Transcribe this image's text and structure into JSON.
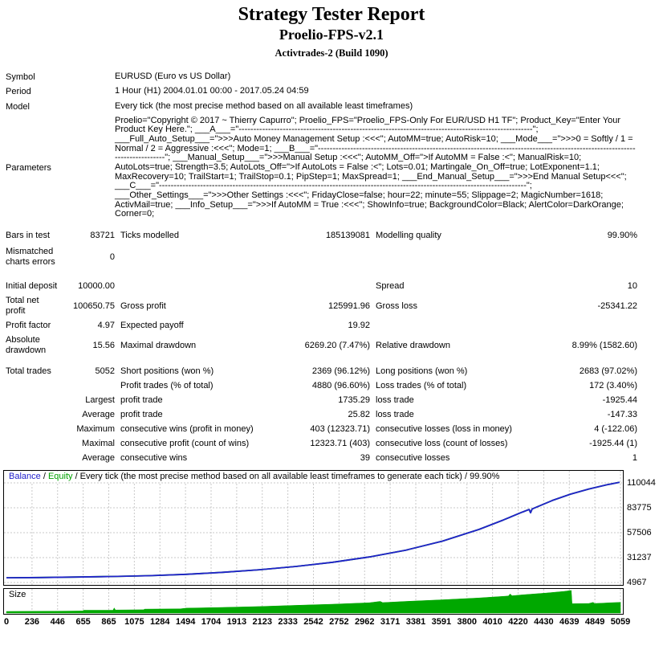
{
  "header": {
    "title": "Strategy Tester Report",
    "subtitle": "Proelio-FPS-v2.1",
    "build": "Activtrades-2 (Build 1090)"
  },
  "table": {
    "info_rows": [
      {
        "label": "Symbol",
        "value": "EURUSD (Euro vs US Dollar)"
      },
      {
        "label": "Period",
        "value": "1 Hour (H1) 2004.01.01 00:00 - 2017.05.24 04:59"
      },
      {
        "label": "Model",
        "value": "Every tick (the most precise method based on all available least timeframes)"
      },
      {
        "label": "Parameters",
        "center": true,
        "value": "Proelio=\"Copyright © 2017 ~ Thierry Capurro\"; Proelio_FPS=\"Proelio_FPS-Only For EUR/USD H1 TF\"; Product_Key=\"Enter Your Product Key Here.\"; ___A___=\"----------------------------------------------------------------------------------------------------\"; ___Full_Auto_Setup___=\">>>Auto Money Management Setup :<<<\"; AutoMM=true; AutoRisk=10; ___Mode___=\">>>0 = Softly / 1 = Normal / 2 = Aggressive :<<<\"; Mode=1; ___B___=\"-----------------------------------------------------------------------------------------------------------------------------\"; ___Manual_Setup___=\">>>Manual Setup :<<<\"; AutoMM_Off=\">If AutoMM = False :<\"; ManualRisk=10; AutoLots=true; Strength=3.5; AutoLots_Off=\">If AutoLots = False :<\"; Lots=0.01; Martingale_On_Off=true; LotExponent=1.1; MaxRecovery=10; TrailStart=1; TrailStop=0.1; PipStep=1; MaxSpread=1; ___End_Manual_Setup___=\">>>End Manual Setup<<<\"; ___C___=\"-----------------------------------------------------------------------------------------------------------------------------\"; ___Other_Settings___=\">>>Other Settings :<<<\"; FridayClose=false; hour=22; minute=55; Slippage=2; MagicNumber=1618; ActivMail=true; ___Info_Setup___=\">>>If AutoMM = True :<<<\"; ShowInfo=true; BackgroundColor=Black; AlertColor=DarkOrange; Corner=0;"
      }
    ],
    "stat_rows": [
      {
        "mt": 12,
        "cells": [
          "Bars in test",
          "83721",
          "Ticks modelled",
          "185139081",
          "Modelling quality",
          "99.90%"
        ]
      },
      {
        "mt": 2,
        "cells": [
          "Mismatched charts errors",
          "0",
          "",
          "",
          "",
          ""
        ]
      },
      {
        "mt": 12,
        "cells": [
          "Initial deposit",
          "10000.00",
          "",
          "",
          "Spread",
          "10"
        ]
      },
      {
        "mt": 0,
        "cells": [
          "Total net profit",
          "100650.75",
          "Gross profit",
          "125991.96",
          "Gross loss",
          "-25341.22"
        ]
      },
      {
        "mt": 0,
        "cells": [
          "Profit factor",
          "4.97",
          "Expected payoff",
          "19.92",
          "",
          ""
        ]
      },
      {
        "mt": 0,
        "cells": [
          "Absolute drawdown",
          "15.56",
          "Maximal drawdown",
          "6269.20 (7.47%)",
          "Relative drawdown",
          "8.99% (1582.60)"
        ]
      },
      {
        "mt": 8,
        "cells": [
          "Total trades",
          "5052",
          "Short positions (won %)",
          "2369 (96.12%)",
          "Long positions (won %)",
          "2683 (97.02%)"
        ]
      },
      {
        "mt": 0,
        "cells": [
          "",
          "",
          "Profit trades (% of total)",
          "4880 (96.60%)",
          "Loss trades (% of total)",
          "172 (3.40%)"
        ]
      },
      {
        "mt": 0,
        "cells": [
          "",
          "Largest",
          "profit trade",
          "1735.29",
          "loss trade",
          "-1925.44"
        ]
      },
      {
        "mt": 0,
        "cells": [
          "",
          "Average",
          "profit trade",
          "25.82",
          "loss trade",
          "-147.33"
        ]
      },
      {
        "mt": 0,
        "cells": [
          "",
          "Maximum",
          "consecutive wins (profit in money)",
          "403 (12323.71)",
          "consecutive losses (loss in money)",
          "4 (-122.06)"
        ]
      },
      {
        "mt": 0,
        "cells": [
          "",
          "Maximal",
          "consecutive profit (count of wins)",
          "12323.71 (403)",
          "consecutive loss (count of losses)",
          "-1925.44 (1)"
        ]
      },
      {
        "mt": 0,
        "cells": [
          "",
          "Average",
          "consecutive wins",
          "39",
          "consecutive losses",
          "1"
        ]
      }
    ]
  },
  "chart_data": [
    {
      "type": "line",
      "title": "Balance / Equity / Every tick (the most precise method based on all available least timeframes to generate each tick) / 99.90%",
      "sep": " / ",
      "legend": [
        {
          "label": "Balance",
          "color": "#2222cc"
        },
        {
          "label": "Equity",
          "color": "#00a000"
        }
      ],
      "legend_suffix": " / Every tick (the most precise method based on all available least timeframes to generate each tick) / 99.90%",
      "x_ticks": [
        0,
        236,
        446,
        655,
        865,
        1075,
        1284,
        1494,
        1704,
        1913,
        2123,
        2333,
        2542,
        2752,
        2962,
        3171,
        3381,
        3591,
        3800,
        4010,
        4220,
        4430,
        4639,
        4849,
        5059
      ],
      "y_ticks": [
        110044,
        83775,
        57506,
        31237,
        4967
      ],
      "x_axis": "trade number",
      "grid": true,
      "legend_position": "top-left",
      "series": [
        {
          "name": "Equity",
          "color": "#00a000",
          "same_as": "Balance",
          "points": []
        },
        {
          "name": "Balance",
          "color": "#2222cc",
          "points": [
            [
              0,
              10000
            ],
            [
              300,
              10250
            ],
            [
              600,
              10700
            ],
            [
              900,
              11300
            ],
            [
              1200,
              12200
            ],
            [
              1500,
              13600
            ],
            [
              1800,
              15700
            ],
            [
              2100,
              18400
            ],
            [
              2400,
              21900
            ],
            [
              2700,
              26300
            ],
            [
              3000,
              31900
            ],
            [
              3300,
              39100
            ],
            [
              3600,
              48600
            ],
            [
              3900,
              61000
            ],
            [
              4100,
              71000
            ],
            [
              4250,
              79000
            ],
            [
              4310,
              82000
            ],
            [
              4322,
              78500
            ],
            [
              4335,
              82600
            ],
            [
              4500,
              91500
            ],
            [
              4650,
              98200
            ],
            [
              4800,
              103600
            ],
            [
              4950,
              108100
            ],
            [
              5052,
              110650.75
            ]
          ]
        }
      ]
    },
    {
      "type": "area",
      "title": "Size",
      "color": "#00a800",
      "y_units": "relative lot size (% of max)",
      "x_ticks": [
        0,
        236,
        446,
        655,
        865,
        1075,
        1284,
        1494,
        1704,
        1913,
        2123,
        2333,
        2542,
        2752,
        2962,
        3171,
        3381,
        3591,
        3800,
        4010,
        4220,
        4430,
        4639,
        4849,
        5059
      ],
      "points": [
        [
          0,
          7
        ],
        [
          420,
          8
        ],
        [
          650,
          9
        ],
        [
          660,
          12
        ],
        [
          900,
          12
        ],
        [
          910,
          22
        ],
        [
          920,
          13
        ],
        [
          1150,
          14
        ],
        [
          1160,
          17
        ],
        [
          1450,
          18
        ],
        [
          1500,
          21
        ],
        [
          1800,
          24
        ],
        [
          2100,
          28
        ],
        [
          2400,
          33
        ],
        [
          2700,
          38
        ],
        [
          3000,
          44
        ],
        [
          3090,
          50
        ],
        [
          3110,
          45
        ],
        [
          3300,
          50
        ],
        [
          3600,
          57
        ],
        [
          3900,
          65
        ],
        [
          4140,
          73
        ],
        [
          4155,
          82
        ],
        [
          4170,
          74
        ],
        [
          4250,
          78
        ],
        [
          4450,
          86
        ],
        [
          4600,
          93
        ],
        [
          4655,
          97
        ],
        [
          4662,
          40
        ],
        [
          4800,
          41
        ],
        [
          4835,
          46
        ],
        [
          4845,
          41
        ],
        [
          4900,
          42
        ],
        [
          4970,
          44
        ],
        [
          5059,
          46
        ]
      ]
    }
  ]
}
